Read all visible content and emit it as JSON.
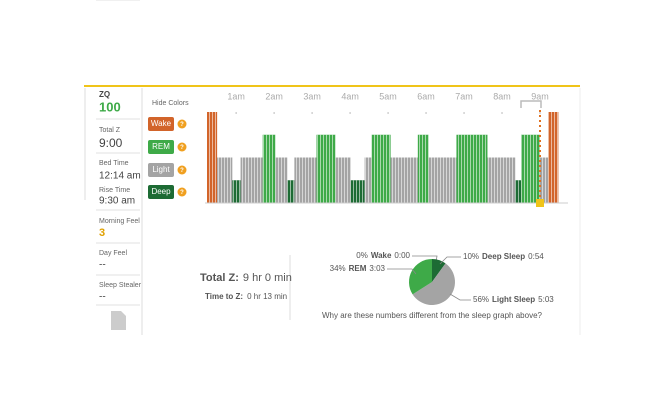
{
  "sidebar": [
    {
      "label": "ZQ",
      "value": "100"
    },
    {
      "label": "Total Z",
      "value": "9:00"
    },
    {
      "label": "Bed Time",
      "value": "12:14 am"
    },
    {
      "label": "Rise Time",
      "value": "9:30 am"
    },
    {
      "label": "Morning Feel",
      "value": "3"
    },
    {
      "label": "Day Feel",
      "value": "--"
    },
    {
      "label": "Sleep Stealer",
      "value": "--"
    }
  ],
  "help_icon": "?",
  "summary": {
    "total_label": "Total Z:",
    "total_value": "9 hr 0 min",
    "ttz_label": "Time to Z:",
    "ttz_value": "0 hr 13 min",
    "question": "Why are these numbers different from the sleep graph above?"
  },
  "chart_data": [
    {
      "type": "hypnogram",
      "legend_title": "Hide Colors",
      "xlim": [
        14,
        570
      ],
      "xticks": [
        {
          "value": 60,
          "label": "1am"
        },
        {
          "value": 120,
          "label": "2am"
        },
        {
          "value": 180,
          "label": "3am"
        },
        {
          "value": 240,
          "label": "4am"
        },
        {
          "value": 300,
          "label": "5am"
        },
        {
          "value": 360,
          "label": "6am"
        },
        {
          "value": 420,
          "label": "7am"
        },
        {
          "value": 480,
          "label": "8am"
        },
        {
          "value": 540,
          "label": "9am"
        }
      ],
      "series": [
        {
          "name": "Wake",
          "color": "#d2642a"
        },
        {
          "name": "REM",
          "color": "#3eaa48"
        },
        {
          "name": "Light",
          "color": "#a4a4a4"
        },
        {
          "name": "Deep",
          "color": "#1d6b34"
        }
      ],
      "segments": [
        {
          "stage": "Wake",
          "minutes": 16
        },
        {
          "stage": "Light",
          "minutes": 24
        },
        {
          "stage": "Deep",
          "minutes": 13
        },
        {
          "stage": "Light",
          "minutes": 35
        },
        {
          "stage": "REM",
          "minutes": 20
        },
        {
          "stage": "Light",
          "minutes": 19
        },
        {
          "stage": "Deep",
          "minutes": 11
        },
        {
          "stage": "Light",
          "minutes": 35
        },
        {
          "stage": "REM",
          "minutes": 30
        },
        {
          "stage": "Light",
          "minutes": 24
        },
        {
          "stage": "Deep",
          "minutes": 22
        },
        {
          "stage": "Light",
          "minutes": 11
        },
        {
          "stage": "REM",
          "minutes": 30
        },
        {
          "stage": "Light",
          "minutes": 43
        },
        {
          "stage": "REM",
          "minutes": 17
        },
        {
          "stage": "Light",
          "minutes": 44
        },
        {
          "stage": "REM",
          "minutes": 49
        },
        {
          "stage": "Light",
          "minutes": 44
        },
        {
          "stage": "Deep",
          "minutes": 9
        },
        {
          "stage": "REM",
          "minutes": 30
        },
        {
          "stage": "Light",
          "minutes": 13
        },
        {
          "stage": "Wake",
          "minutes": 16
        }
      ]
    },
    {
      "type": "pie",
      "series": [
        {
          "name": "Wake",
          "color": "#d2642a"
        },
        {
          "name": "Deep Sleep",
          "color": "#1d6b34"
        },
        {
          "name": "Light Sleep",
          "color": "#a4a4a4"
        },
        {
          "name": "REM",
          "color": "#3eaa48"
        }
      ],
      "values": [
        0,
        10,
        56,
        34
      ],
      "value_labels": [
        "0%",
        "10%",
        "56%",
        "34%"
      ],
      "times": [
        "0:00",
        "0:54",
        "5:03",
        "3:03"
      ]
    }
  ]
}
